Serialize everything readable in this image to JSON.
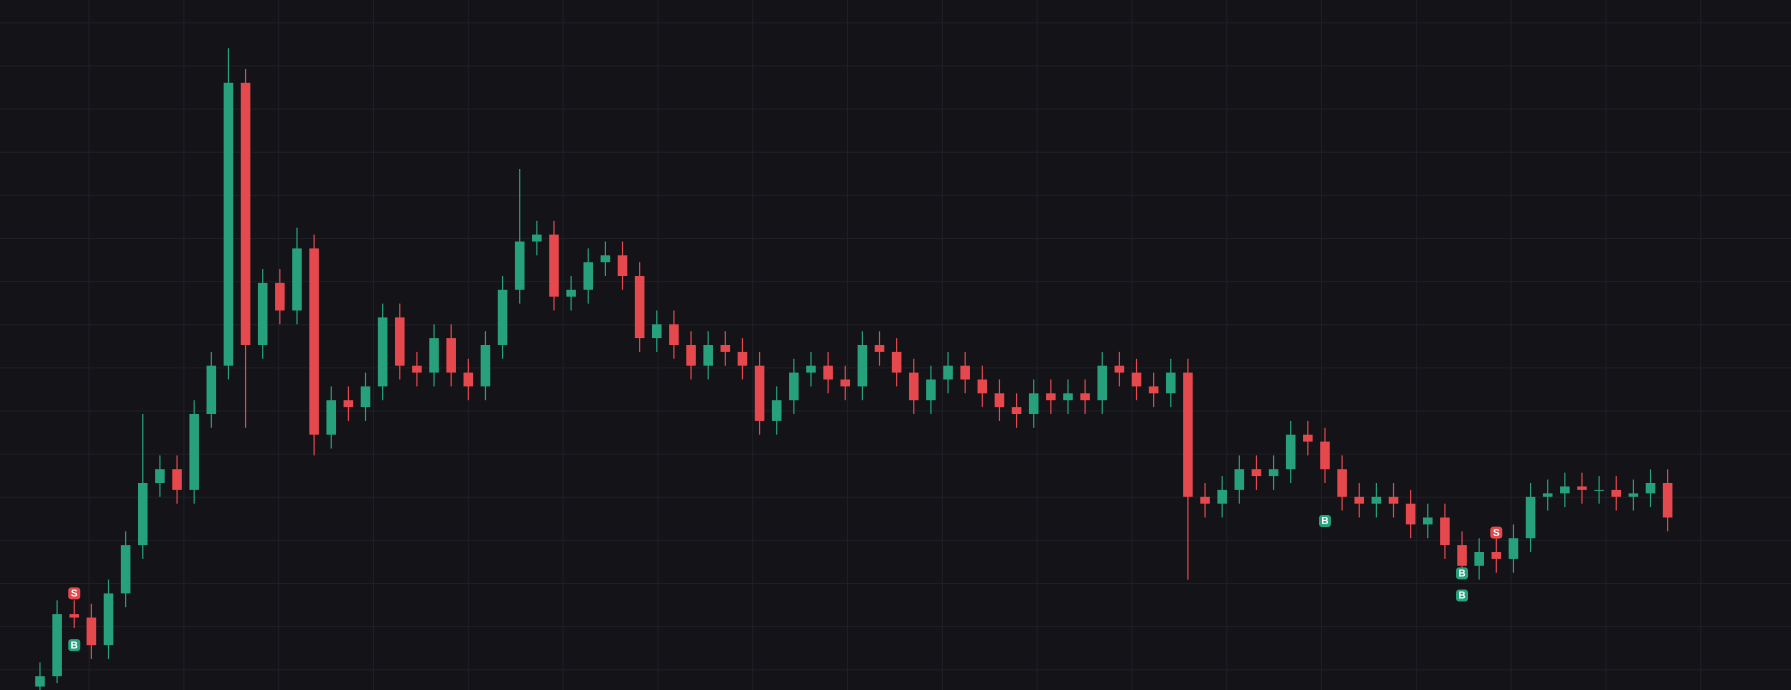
{
  "chart_data": {
    "type": "candlestick",
    "ylim": [
      0,
      100
    ],
    "grid": true,
    "up_color": "#27a17b",
    "down_color": "#e5484d",
    "open": [
      0.5,
      2,
      11,
      10.5,
      6.5,
      14,
      21,
      30,
      32,
      29,
      40,
      47,
      88,
      50,
      59,
      55,
      64,
      37,
      42,
      41,
      44,
      54,
      47,
      46,
      51,
      46,
      44,
      50,
      58,
      65,
      66,
      57,
      58,
      62,
      63,
      60,
      51,
      53,
      50,
      47,
      50,
      49,
      47,
      39,
      42,
      46,
      47,
      45,
      44,
      50,
      49,
      46,
      42,
      45,
      47,
      45,
      43,
      41,
      40,
      43,
      42,
      43,
      42,
      47,
      46,
      44,
      43,
      46,
      28,
      27,
      29,
      32,
      31,
      32,
      37,
      36,
      32,
      28,
      27,
      28,
      27,
      24,
      25,
      21,
      18,
      20,
      19,
      22,
      28,
      28.5,
      29.5,
      29,
      29,
      28,
      28.5,
      30
    ],
    "high": [
      4,
      13,
      13,
      12.5,
      16,
      23,
      40,
      34,
      34,
      42,
      49,
      93,
      90,
      61,
      61,
      67,
      66,
      44,
      44,
      46,
      56,
      56,
      49,
      53,
      53,
      48,
      52,
      60,
      75.5,
      68,
      68,
      60,
      64,
      65,
      65,
      62,
      55,
      55,
      52,
      52,
      52,
      51,
      49,
      44,
      48,
      49,
      49,
      47,
      52,
      52,
      51,
      48,
      47,
      49,
      49,
      47,
      45,
      43,
      45,
      45,
      45,
      45,
      49,
      49,
      48,
      46,
      48,
      48,
      30,
      31,
      34,
      34,
      34,
      39,
      39,
      38,
      34,
      30,
      30,
      30,
      29,
      27,
      27,
      23,
      22,
      22,
      24,
      30,
      30.5,
      31.5,
      31.5,
      31,
      31,
      30.5,
      32,
      32
    ],
    "low": [
      0,
      1,
      9,
      4.5,
      4.5,
      12,
      19,
      28,
      27,
      27,
      38,
      45,
      38,
      48,
      53,
      53,
      34,
      35,
      39,
      39,
      42,
      45,
      44,
      44,
      44,
      42,
      42,
      48,
      56,
      63,
      55,
      55,
      56,
      60,
      58,
      49,
      49,
      48,
      45,
      45,
      47,
      45,
      37,
      37,
      40,
      44,
      43,
      42,
      42,
      47,
      44,
      40,
      40,
      43,
      43,
      41,
      39,
      38,
      38,
      40,
      40,
      40,
      40,
      44,
      42,
      41,
      41,
      16,
      25,
      25,
      27,
      29,
      29,
      30,
      34,
      30,
      26,
      25,
      25,
      25,
      22,
      22,
      19,
      16,
      16,
      17,
      17,
      20,
      26,
      26.5,
      27,
      27,
      26,
      26,
      26.5,
      23
    ],
    "close": [
      2,
      11,
      10.5,
      6.5,
      14,
      21,
      30,
      32,
      29,
      40,
      47,
      88,
      50,
      59,
      55,
      64,
      37,
      42,
      41,
      44,
      54,
      47,
      46,
      51,
      46,
      44,
      50,
      58,
      65,
      66,
      57,
      58,
      62,
      63,
      60,
      51,
      53,
      50,
      47,
      50,
      49,
      47,
      39,
      42,
      46,
      47,
      45,
      44,
      50,
      49,
      46,
      42,
      45,
      47,
      45,
      43,
      41,
      40,
      43,
      42,
      43,
      42,
      47,
      46,
      44,
      43,
      46,
      28,
      27,
      29,
      32,
      31,
      32,
      37,
      36,
      32,
      28,
      27,
      28,
      27,
      24,
      25,
      21,
      18,
      20,
      19,
      22,
      28,
      28.5,
      29.5,
      29,
      29,
      28,
      28.5,
      30,
      25
    ],
    "markers": [
      {
        "label": "S",
        "index": 2,
        "value": 14,
        "color": "#e5484d"
      },
      {
        "label": "B",
        "index": 2,
        "value": 6.5,
        "color": "#27a17b"
      },
      {
        "label": "B",
        "index": 75,
        "value": 24.5,
        "color": "#27a17b"
      },
      {
        "label": "B",
        "index": 83,
        "value": 16.9,
        "color": "#27a17b"
      },
      {
        "label": "B",
        "index": 83,
        "value": 13.7,
        "color": "#27a17b"
      },
      {
        "label": "S",
        "index": 85,
        "value": 22.8,
        "color": "#e5484d"
      }
    ]
  }
}
